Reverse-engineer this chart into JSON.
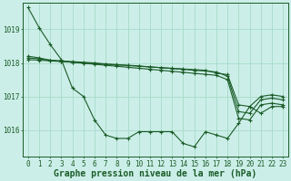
{
  "background_color": "#cceee8",
  "grid_color": "#aaddcc",
  "line_color": "#1a5c28",
  "xlabel": "Graphe pression niveau de la mer (hPa)",
  "xlabel_fontsize": 7,
  "xlabel_color": "#1a5c28",
  "tick_color": "#1a5c28",
  "tick_fontsize": 5.5,
  "ytick_fontsize": 5.5,
  "ylim": [
    1015.2,
    1019.8
  ],
  "xlim": [
    -0.5,
    23.5
  ],
  "yticks": [
    1016,
    1017,
    1018,
    1019
  ],
  "xticks": [
    0,
    1,
    2,
    3,
    4,
    5,
    6,
    7,
    8,
    9,
    10,
    11,
    12,
    13,
    14,
    15,
    16,
    17,
    18,
    19,
    20,
    21,
    22,
    23
  ],
  "series": [
    [
      1019.65,
      1019.05,
      1018.55,
      1018.1,
      1017.25,
      1017.0,
      1016.3,
      1015.85,
      1015.75,
      1015.75,
      1015.95,
      1015.95,
      1015.95,
      1015.95,
      1015.6,
      1015.5,
      1015.95,
      1015.85,
      1015.75,
      1016.2,
      1016.7,
      1016.5,
      1016.7,
      1016.7
    ],
    [
      1018.2,
      1018.15,
      1018.08,
      1018.05,
      1018.02,
      1017.99,
      1017.96,
      1017.93,
      1017.9,
      1017.87,
      1017.84,
      1017.81,
      1017.78,
      1017.75,
      1017.72,
      1017.69,
      1017.66,
      1017.63,
      1017.5,
      1016.35,
      1016.3,
      1016.75,
      1016.8,
      1016.75
    ],
    [
      1018.15,
      1018.12,
      1018.08,
      1018.06,
      1018.04,
      1018.02,
      1018.0,
      1017.97,
      1017.95,
      1017.93,
      1017.91,
      1017.88,
      1017.86,
      1017.83,
      1017.81,
      1017.78,
      1017.76,
      1017.73,
      1017.6,
      1016.55,
      1016.5,
      1016.9,
      1016.95,
      1016.9
    ],
    [
      1018.1,
      1018.08,
      1018.06,
      1018.04,
      1018.02,
      1018.0,
      1017.98,
      1017.96,
      1017.94,
      1017.92,
      1017.9,
      1017.88,
      1017.86,
      1017.84,
      1017.82,
      1017.8,
      1017.78,
      1017.7,
      1017.65,
      1016.75,
      1016.7,
      1017.0,
      1017.05,
      1017.0
    ]
  ]
}
